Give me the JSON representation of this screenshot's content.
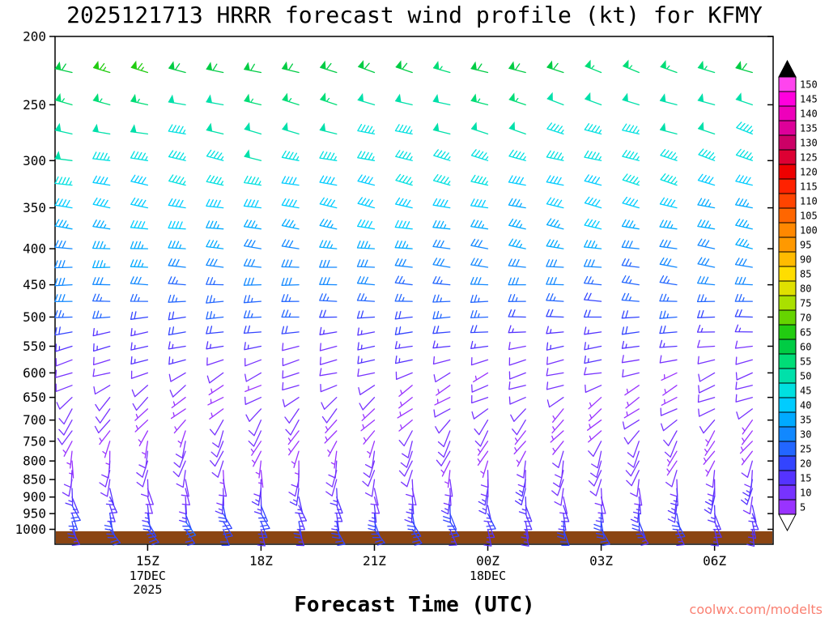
{
  "watermark": {
    "text": "coolwx.com/modelts",
    "color": "#fa8072"
  },
  "chart_data": {
    "type": "wind-barb-profile",
    "title": "2025121713 HRRR forecast wind profile (kt) for KFMY",
    "xlabel": "Forecast Time (UTC)",
    "units": "kt",
    "y_axis": "pressure_hPa_log_scale",
    "y_range_hpa": [
      200,
      1050
    ],
    "y_ticks_hpa": [
      200,
      250,
      300,
      350,
      400,
      450,
      500,
      550,
      600,
      650,
      700,
      750,
      800,
      850,
      900,
      950,
      1000
    ],
    "x_range_hours": [
      12.55,
      31.55
    ],
    "forecast_hours": [
      13,
      14,
      15,
      16,
      17,
      18,
      19,
      20,
      21,
      22,
      23,
      24,
      25,
      26,
      27,
      28,
      29,
      30,
      31
    ],
    "x_ticks": [
      {
        "hour": 15,
        "label": "15Z"
      },
      {
        "hour": 18,
        "label": "18Z"
      },
      {
        "hour": 21,
        "label": "21Z"
      },
      {
        "hour": 24,
        "label": "00Z"
      },
      {
        "hour": 27,
        "label": "03Z"
      },
      {
        "hour": 30,
        "label": "06Z"
      }
    ],
    "date_labels": [
      {
        "hour": 15,
        "lines": [
          "17DEC",
          "2025"
        ]
      },
      {
        "hour": 24,
        "lines": [
          "18DEC"
        ]
      }
    ],
    "ground_color": "#8b4513",
    "colorbar": {
      "unit": "kt",
      "levels": [
        5,
        10,
        15,
        20,
        25,
        30,
        35,
        40,
        45,
        50,
        55,
        60,
        65,
        70,
        75,
        80,
        85,
        90,
        95,
        100,
        105,
        110,
        115,
        120,
        125,
        130,
        135,
        140,
        145,
        150
      ],
      "colors": [
        "#9933ff",
        "#7733ff",
        "#5533ff",
        "#3344ff",
        "#2266ff",
        "#1188ff",
        "#00aaff",
        "#00ccff",
        "#00e0e0",
        "#00e0aa",
        "#00dd77",
        "#00cc44",
        "#22cc11",
        "#66d400",
        "#aae000",
        "#e0e000",
        "#ffdd00",
        "#ffbb00",
        "#ff9900",
        "#ff8800",
        "#ff6600",
        "#ff4400",
        "#ff2200",
        "#ee0000",
        "#dd0033",
        "#cc0066",
        "#dd0099",
        "#ee00bb",
        "#ff00dd",
        "#ff44ee"
      ],
      "over_color": "#000000",
      "under_color": "#ffffff"
    },
    "profile": [
      {
        "p": 225,
        "spd": [
          62,
          56
        ],
        "dir": [
          283,
          290
        ]
      },
      {
        "p": 250,
        "spd": [
          55,
          50
        ],
        "dir": [
          282,
          289
        ]
      },
      {
        "p": 275,
        "spd": [
          50,
          47
        ],
        "dir": [
          281,
          288
        ]
      },
      {
        "p": 300,
        "spd": [
          47,
          44
        ],
        "dir": [
          280,
          287
        ]
      },
      {
        "p": 325,
        "spd": [
          44,
          41
        ],
        "dir": [
          279,
          286
        ]
      },
      {
        "p": 350,
        "spd": [
          41,
          38
        ],
        "dir": [
          278,
          284
        ]
      },
      {
        "p": 375,
        "spd": [
          37,
          35
        ],
        "dir": [
          276,
          282
        ]
      },
      {
        "p": 400,
        "spd": [
          34,
          32
        ],
        "dir": [
          274,
          280
        ]
      },
      {
        "p": 425,
        "spd": [
          31,
          29
        ],
        "dir": [
          272,
          278
        ]
      },
      {
        "p": 450,
        "spd": [
          29,
          27
        ],
        "dir": [
          270,
          276
        ]
      },
      {
        "p": 475,
        "spd": [
          26,
          24
        ],
        "dir": [
          267,
          273
        ]
      },
      {
        "p": 500,
        "spd": [
          23,
          21
        ],
        "dir": [
          264,
          270
        ]
      },
      {
        "p": 525,
        "spd": [
          19,
          17
        ],
        "dir": [
          260,
          267
        ]
      },
      {
        "p": 550,
        "spd": [
          15,
          13
        ],
        "dir": [
          256,
          263
        ]
      },
      {
        "p": 575,
        "spd": [
          12,
          10
        ],
        "dir": [
          251,
          258
        ]
      },
      {
        "p": 600,
        "spd": [
          10,
          9
        ],
        "dir": [
          245,
          253
        ]
      },
      {
        "p": 625,
        "spd": [
          9,
          8
        ],
        "dir": [
          238,
          248
        ]
      },
      {
        "p": 650,
        "spd": [
          8,
          8
        ],
        "dir": [
          230,
          243
        ]
      },
      {
        "p": 675,
        "spd": [
          8,
          7
        ],
        "dir": [
          221,
          236
        ]
      },
      {
        "p": 700,
        "spd": [
          8,
          7
        ],
        "dir": [
          212,
          228
        ]
      },
      {
        "p": 725,
        "spd": [
          7,
          7
        ],
        "dir": [
          205,
          221
        ]
      },
      {
        "p": 750,
        "spd": [
          7,
          7
        ],
        "dir": [
          199,
          214
        ]
      },
      {
        "p": 775,
        "spd": [
          7,
          8
        ],
        "dir": [
          193,
          208
        ]
      },
      {
        "p": 800,
        "spd": [
          8,
          9
        ],
        "dir": [
          188,
          202
        ]
      },
      {
        "p": 825,
        "spd": [
          9,
          10
        ],
        "dir": [
          183,
          196
        ]
      },
      {
        "p": 850,
        "spd": [
          10,
          11
        ],
        "dir": [
          178,
          191
        ]
      },
      {
        "p": 875,
        "spd": [
          12,
          12
        ],
        "dir": [
          172,
          186
        ]
      },
      {
        "p": 900,
        "spd": [
          14,
          13
        ],
        "dir": [
          167,
          181
        ]
      },
      {
        "p": 925,
        "spd": [
          17,
          15
        ],
        "dir": [
          162,
          176
        ]
      },
      {
        "p": 950,
        "spd": [
          20,
          17
        ],
        "dir": [
          158,
          171
        ]
      },
      {
        "p": 975,
        "spd": [
          21,
          18
        ],
        "dir": [
          154,
          166
        ]
      },
      {
        "p": 1000,
        "spd": [
          19,
          15
        ],
        "dir": [
          151,
          161
        ]
      }
    ],
    "jitter": {
      "spd_amp": 2.2,
      "dir_amp_low": 13,
      "dir_amp_high": 4,
      "low_level_threshold_hpa": 600
    }
  }
}
